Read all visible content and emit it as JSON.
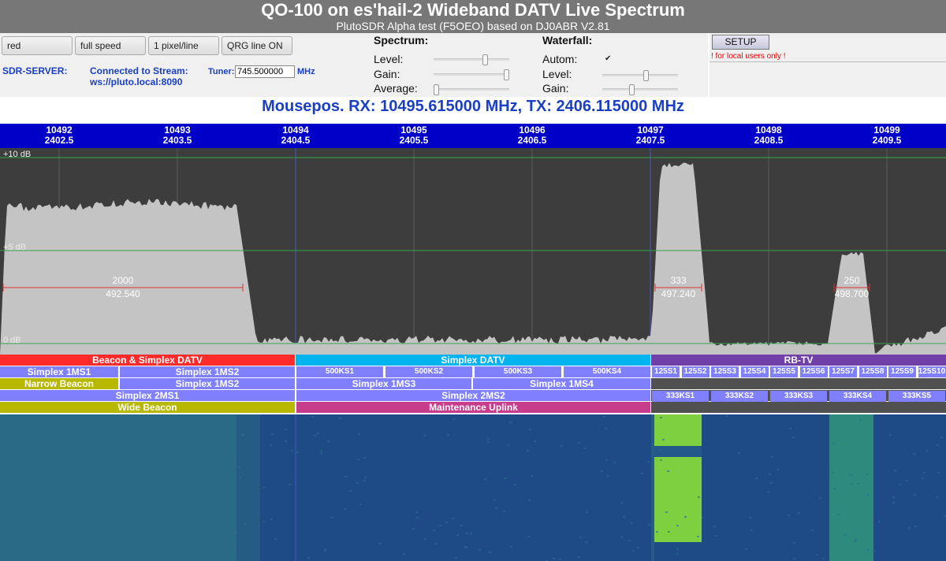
{
  "header": {
    "title": "QO-100 on es'hail-2 Wideband DATV Live Spectrum",
    "subtitle": "PlutoSDR Alpha test (F5OEO) based on DJ0ABR V2.81"
  },
  "controls": {
    "buttons": [
      "red",
      "full speed",
      "1 pixel/line",
      "QRG line ON"
    ],
    "sdr_server_label": "SDR-SERVER:",
    "connected_line1": "Connected to Stream:",
    "connected_line2": "ws://pluto.local:8090",
    "tuner_label": "Tuner:",
    "tuner_value": "745.500000",
    "tuner_unit": "MHz"
  },
  "spectrum_controls": {
    "title": "Spectrum:",
    "level_label": "Level:",
    "level_value": 0.7,
    "gain_label": "Gain:",
    "gain_value": 1.0,
    "average_label": "Average:",
    "average_value": 0.0
  },
  "waterfall_controls": {
    "title": "Waterfall:",
    "autom_label": "Autom:",
    "autom_checked": true,
    "level_label": "Level:",
    "level_value": 0.58,
    "gain_label": "Gain:",
    "gain_value": 0.38
  },
  "setup": {
    "button_label": "SETUP",
    "local_note": "! for local users only !"
  },
  "mousepos": "Mousepos. RX: 10495.615000 MHz, TX: 2406.115000 MHz",
  "freq_scale": [
    {
      "rx": "10492",
      "tx": "2402.5",
      "mhz": 10492
    },
    {
      "rx": "10493",
      "tx": "2403.5",
      "mhz": 10493
    },
    {
      "rx": "10494",
      "tx": "2404.5",
      "mhz": 10494
    },
    {
      "rx": "10495",
      "tx": "2405.5",
      "mhz": 10495
    },
    {
      "rx": "10496",
      "tx": "2406.5",
      "mhz": 10496
    },
    {
      "rx": "10497",
      "tx": "2407.5",
      "mhz": 10497
    },
    {
      "rx": "10498",
      "tx": "2408.5",
      "mhz": 10498
    },
    {
      "rx": "10499",
      "tx": "2409.5",
      "mhz": 10499
    }
  ],
  "spectrum": {
    "db_labels": [
      "+10 dB",
      "+5 dB",
      "0 dB"
    ],
    "markers": [
      {
        "sr": "2000",
        "freq": "492.540"
      },
      {
        "sr": "333",
        "freq": "497.240"
      },
      {
        "sr": "250",
        "freq": "498.700"
      }
    ],
    "colors": {
      "background": "#3d3d3d",
      "fill": "#c4c4c4",
      "gridline": "#2fa84a",
      "marker": "#e03030",
      "cursor": "#4a5bd8"
    }
  },
  "bands": {
    "row1": [
      "Beacon & Simplex DATV",
      "Simplex DATV",
      "RB-TV"
    ],
    "row2_left": [
      "Simplex 1MS1",
      "Simplex 1MS2"
    ],
    "row2_mid": [
      "500KS1",
      "500KS2",
      "500KS3",
      "500KS4"
    ],
    "row2_right": [
      "125S1",
      "125S2",
      "125S3",
      "125S4",
      "125S5",
      "125S6",
      "125S7",
      "125S8",
      "125S9",
      "125S10"
    ],
    "row3": [
      "Narrow Beacon",
      "Simplex 1MS2",
      "Simplex 1MS3",
      "Simplex 1MS4"
    ],
    "row4": [
      "Simplex 2MS1",
      "Simplex 2MS2"
    ],
    "row4_right": [
      "333KS1",
      "333KS2",
      "333KS3",
      "333KS4",
      "333KS5"
    ],
    "row5": [
      "Wide Beacon",
      "Maintenance Uplink"
    ],
    "colors": {
      "red": "#ff2a2a",
      "cyan": "#00b4f0",
      "purple": "#7040a8",
      "lavender": "#8080ff",
      "olive": "#b8b800",
      "magenta": "#c83c8c"
    }
  }
}
